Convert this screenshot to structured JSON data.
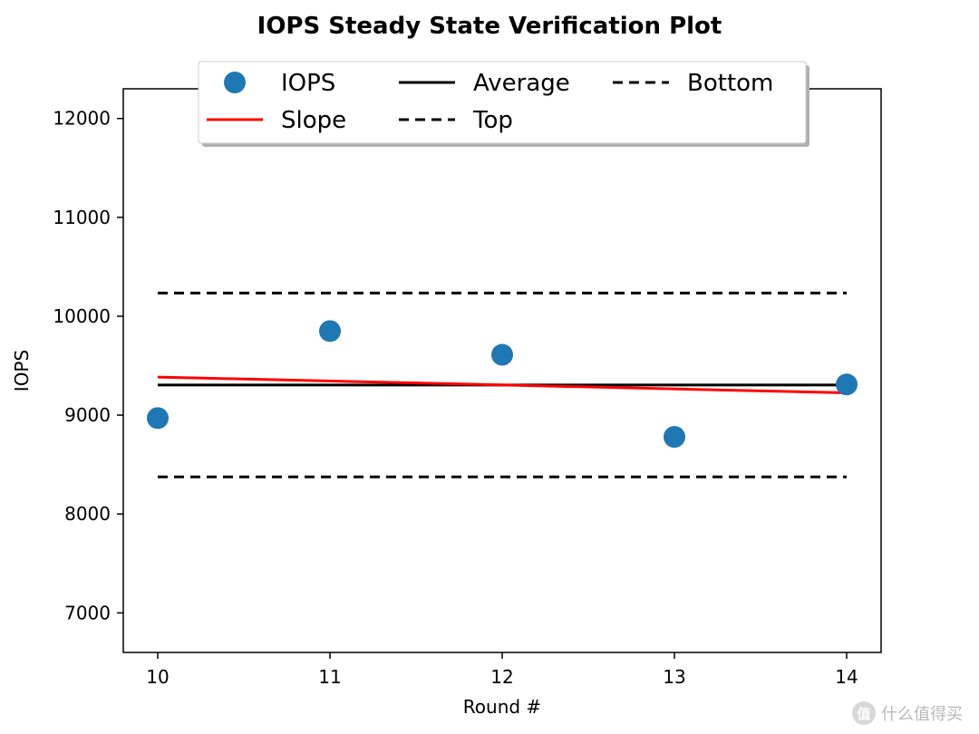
{
  "chart_data": {
    "type": "line",
    "title": "IOPS Steady State Verification Plot",
    "xlabel": "Round #",
    "ylabel": "IOPS",
    "xlim": [
      9.8,
      14.2
    ],
    "ylim": [
      6600,
      12300
    ],
    "xticks": [
      10,
      11,
      12,
      13,
      14
    ],
    "yticks": [
      7000,
      8000,
      9000,
      10000,
      11000,
      12000
    ],
    "grid": false,
    "legend_position": "top-center",
    "series": [
      {
        "name": "IOPS",
        "style": "markers",
        "color": "#1f77b4",
        "x": [
          10,
          11,
          12,
          13,
          14
        ],
        "y": [
          8970,
          9850,
          9610,
          8780,
          9310
        ]
      },
      {
        "name": "Slope",
        "style": "line",
        "color": "#ff0000",
        "x": [
          10,
          14
        ],
        "y": [
          9385,
          9225
        ]
      },
      {
        "name": "Average",
        "style": "line",
        "color": "#000000",
        "x": [
          10,
          14
        ],
        "y": [
          9305,
          9305
        ]
      },
      {
        "name": "Top",
        "style": "dashed",
        "color": "#000000",
        "x": [
          10,
          14
        ],
        "y": [
          10235,
          10235
        ]
      },
      {
        "name": "Bottom",
        "style": "dashed",
        "color": "#000000",
        "x": [
          10,
          14
        ],
        "y": [
          8375,
          8375
        ]
      }
    ]
  },
  "watermark": {
    "text": "什么值得买",
    "logo_glyph": "值"
  }
}
